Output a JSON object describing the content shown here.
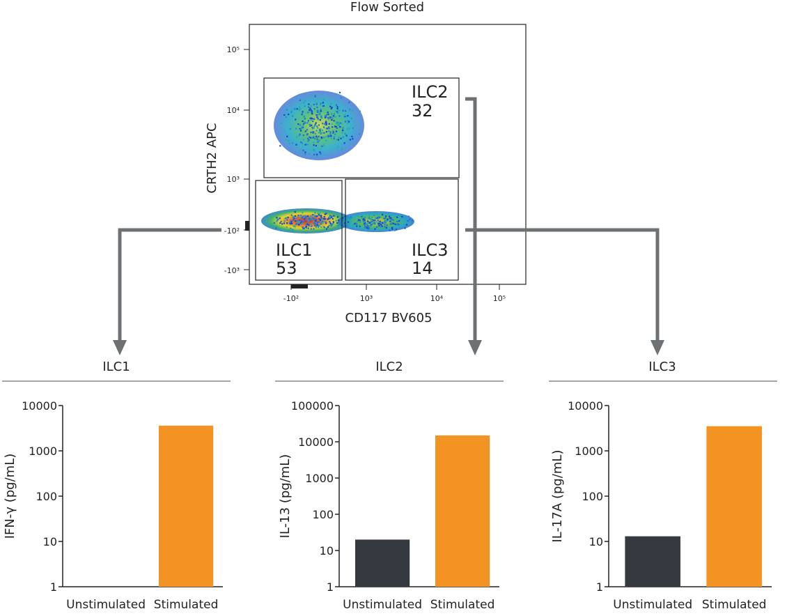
{
  "colors": {
    "arrow": "#6d7173",
    "bar_unstim": "#343a3f",
    "bar_stim": "#f39323",
    "axis": "#222222",
    "divider": "#a6a6a6"
  },
  "flow_plot": {
    "title": "Flow Sorted",
    "xlabel": "CD117 BV605",
    "ylabel": "CRTH2 APC",
    "x_ticks": [
      "-10²",
      "10³",
      "10⁴",
      "10⁵"
    ],
    "y_ticks": [
      "10⁵",
      "10⁴",
      "10³",
      "-10²",
      "-10³"
    ],
    "gates": [
      {
        "name": "ILC2",
        "value": "32"
      },
      {
        "name": "ILC1",
        "value": "53"
      },
      {
        "name": "ILC3",
        "value": "14"
      }
    ]
  },
  "chart_data": [
    {
      "type": "bar",
      "title": "ILC1",
      "ylabel": "IFN-γ (pg/mL)",
      "yscale": "log",
      "ylim": [
        1,
        10000
      ],
      "yticks": [
        "10000",
        "1000",
        "100",
        "10",
        "1"
      ],
      "categories": [
        "Unstimulated",
        "Stimulated"
      ],
      "values": [
        1,
        3600
      ]
    },
    {
      "type": "bar",
      "title": "ILC2",
      "ylabel": "IL-13 (pg/mL)",
      "yscale": "log",
      "ylim": [
        1,
        100000
      ],
      "yticks": [
        "100000",
        "10000",
        "1000",
        "100",
        "10",
        "1"
      ],
      "categories": [
        "Unstimulated",
        "Stimulated"
      ],
      "values": [
        20,
        15000
      ]
    },
    {
      "type": "bar",
      "title": "ILC3",
      "ylabel": "IL-17A (pg/mL)",
      "yscale": "log",
      "ylim": [
        1,
        10000
      ],
      "yticks": [
        "10000",
        "1000",
        "100",
        "10",
        "1"
      ],
      "categories": [
        "Unstimulated",
        "Stimulated"
      ],
      "values": [
        13,
        3500
      ]
    }
  ]
}
